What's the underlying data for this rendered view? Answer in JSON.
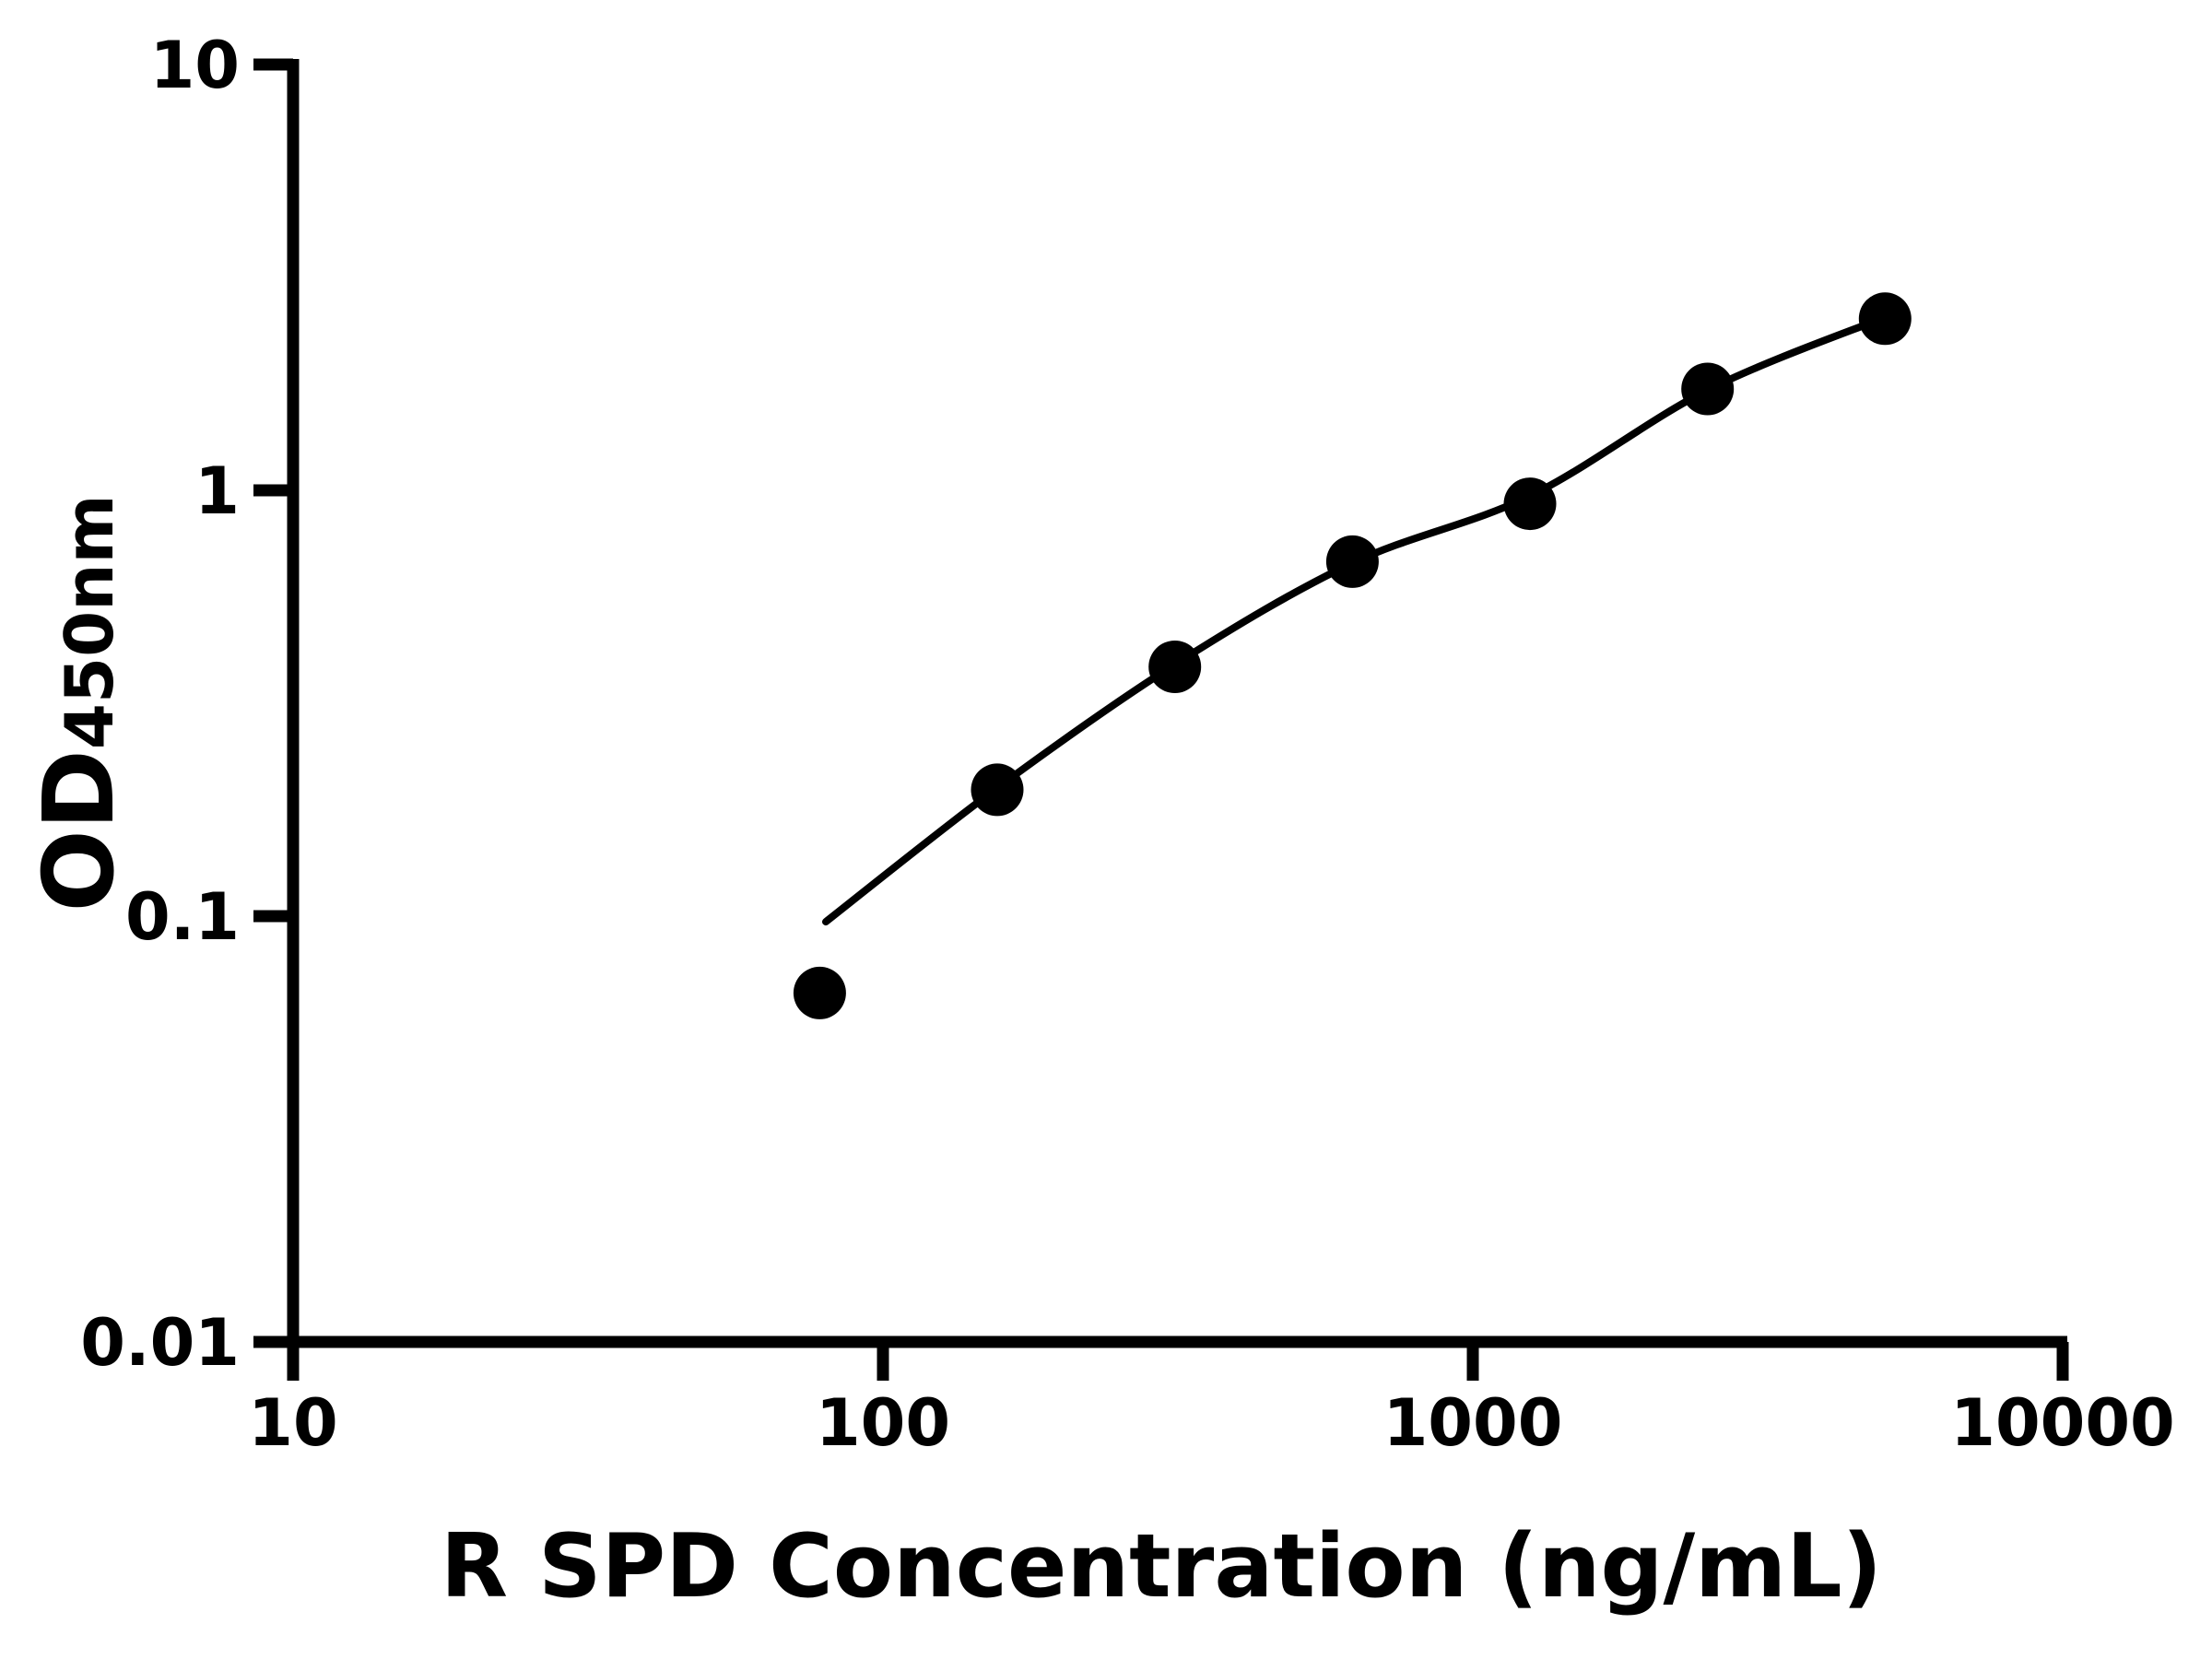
{
  "page": {
    "background_color": "#ffffff",
    "foreground_color": "#000000"
  },
  "chart_data": {
    "type": "scatter",
    "subtype": "scatter-points-with-fitted-curve",
    "title": "",
    "xlabel": "R SPD Concentration (ng/mL)",
    "ylabel_main": "OD",
    "ylabel_sub": "450nm",
    "x_scale": "log",
    "y_scale": "log",
    "xlim": [
      10,
      10000
    ],
    "ylim": [
      0.01,
      10
    ],
    "grid": false,
    "legend": "none",
    "x_ticks": [
      {
        "value": 10,
        "label": "10"
      },
      {
        "value": 100,
        "label": "100"
      },
      {
        "value": 1000,
        "label": "1000"
      },
      {
        "value": 10000,
        "label": "10000"
      }
    ],
    "y_ticks": [
      {
        "value": 10,
        "label": "10"
      },
      {
        "value": 1,
        "label": "1"
      },
      {
        "value": 0.1,
        "label": "0.1"
      },
      {
        "value": 0.01,
        "label": "0.01"
      }
    ],
    "series": [
      {
        "name": "standard curve data points",
        "marker": "filled-circle",
        "color": "#000000",
        "points": [
          [
            78.125,
            0.066
          ],
          [
            156.25,
            0.198
          ],
          [
            312.5,
            0.385
          ],
          [
            625,
            0.68
          ],
          [
            1250,
            0.93
          ],
          [
            2500,
            1.73
          ],
          [
            5000,
            2.53
          ]
        ]
      }
    ],
    "fit_curve": {
      "name": "fitted standard curve",
      "color": "#000000",
      "points": [
        [
          80,
          0.097
        ],
        [
          156.25,
          0.2
        ],
        [
          312.5,
          0.39
        ],
        [
          625,
          0.675
        ],
        [
          1250,
          0.97
        ],
        [
          2500,
          1.72
        ],
        [
          5000,
          2.55
        ]
      ]
    }
  }
}
